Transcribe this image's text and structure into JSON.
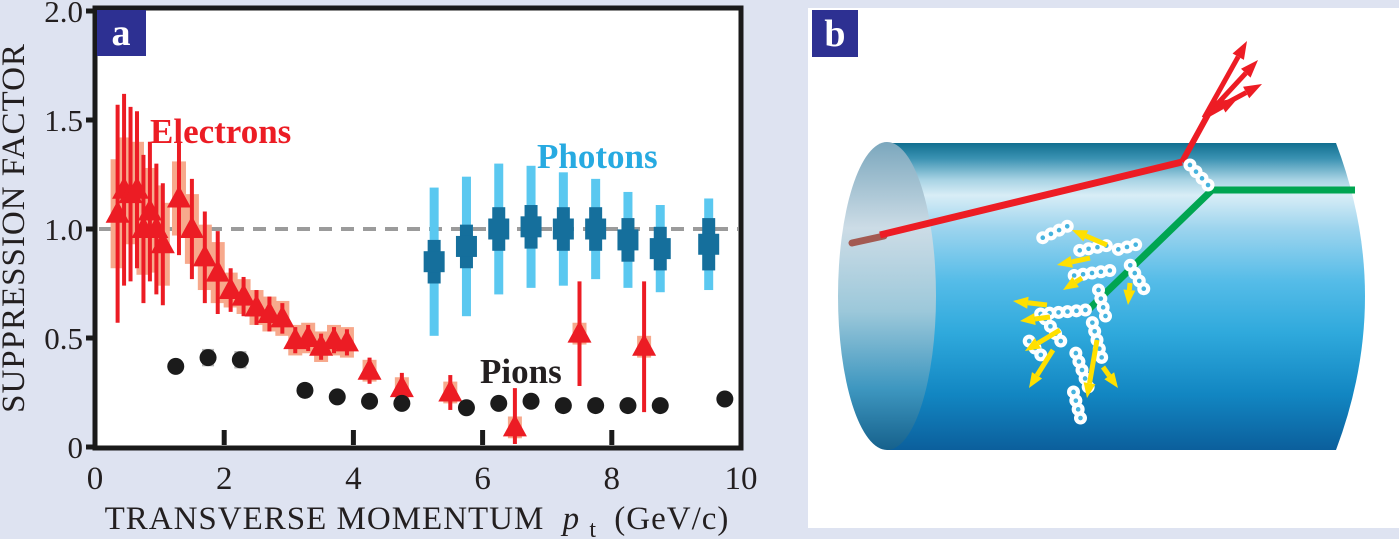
{
  "figure": {
    "background_color": "#dee3f1",
    "badge_color": "#2d3092",
    "panel_a_label": "a",
    "panel_b_label": "b"
  },
  "chart_data": {
    "type": "scatter",
    "title": "",
    "ylabel": "SUPPRESSION FACTOR",
    "xlabel_main": "TRANSVERSE MOMENTUM",
    "xlabel_symbol": "p",
    "xlabel_sub": "t",
    "xlabel_unit": "(GeV/c)",
    "xlim": [
      0,
      10
    ],
    "ylim": [
      0,
      2
    ],
    "xticks": [
      0,
      2,
      4,
      6,
      8,
      10
    ],
    "xtick_labels": [
      "0",
      "2",
      "4",
      "6",
      "8",
      "10"
    ],
    "yticks": [
      0,
      0.5,
      1.0,
      1.5,
      2.0
    ],
    "ytick_labels": [
      "0",
      "0.5",
      "1.0",
      "1.5",
      "2.0"
    ],
    "grid": false,
    "frame_color": "#1a1a1a",
    "reference_line": 1.0,
    "reference_line_color": "#9b9b9b",
    "legend_position": "annotations-inside-plot",
    "series": [
      {
        "name": "Electrons",
        "marker": "triangle",
        "color": "#ec1c24",
        "band_color": "#f7a98c",
        "point_format": [
          "pt_GeVc",
          "suppression_factor",
          "stat_err",
          "sys_err"
        ],
        "points": [
          [
            0.35,
            1.07,
            0.5,
            0.25
          ],
          [
            0.45,
            1.18,
            0.44,
            0.24
          ],
          [
            0.55,
            1.16,
            0.4,
            0.23
          ],
          [
            0.65,
            1.18,
            0.36,
            0.22
          ],
          [
            0.75,
            1.0,
            0.34,
            0.21
          ],
          [
            0.85,
            1.08,
            0.32,
            0.2
          ],
          [
            0.95,
            1.0,
            0.3,
            0.2
          ],
          [
            1.05,
            0.93,
            0.28,
            0.19
          ],
          [
            1.3,
            1.14,
            0.26,
            0.17
          ],
          [
            1.5,
            1.0,
            0.23,
            0.16
          ],
          [
            1.7,
            0.87,
            0.21,
            0.15
          ],
          [
            1.9,
            0.8,
            0.19,
            0.14
          ],
          [
            2.1,
            0.72,
            0.1,
            0.08
          ],
          [
            2.3,
            0.69,
            0.09,
            0.08
          ],
          [
            2.5,
            0.64,
            0.08,
            0.08
          ],
          [
            2.7,
            0.61,
            0.08,
            0.08
          ],
          [
            2.9,
            0.59,
            0.07,
            0.08
          ],
          [
            3.1,
            0.49,
            0.06,
            0.07
          ],
          [
            3.3,
            0.5,
            0.06,
            0.07
          ],
          [
            3.5,
            0.46,
            0.06,
            0.07
          ],
          [
            3.7,
            0.49,
            0.06,
            0.07
          ],
          [
            3.9,
            0.48,
            0.06,
            0.07
          ],
          [
            4.25,
            0.35,
            0.06,
            0.05
          ],
          [
            4.75,
            0.27,
            0.07,
            0.05
          ],
          [
            5.5,
            0.25,
            0.08,
            0.05
          ],
          [
            6.5,
            0.09,
            0.18,
            0.05
          ],
          [
            7.5,
            0.52,
            0.24,
            0.05
          ],
          [
            8.5,
            0.46,
            0.3,
            0.05
          ]
        ]
      },
      {
        "name": "Photons",
        "marker": "square",
        "color": "#156f9c",
        "err_color": "#5ac8f0",
        "point_format": [
          "pt_GeVc",
          "suppression_factor",
          "stat_err",
          "sys_err"
        ],
        "points": [
          [
            5.25,
            0.85,
            0.34,
            0.1
          ],
          [
            5.75,
            0.92,
            0.32,
            0.1
          ],
          [
            6.25,
            1.0,
            0.3,
            0.1
          ],
          [
            6.75,
            1.01,
            0.28,
            0.1
          ],
          [
            7.25,
            1.0,
            0.26,
            0.1
          ],
          [
            7.75,
            1.0,
            0.23,
            0.1
          ],
          [
            8.25,
            0.95,
            0.22,
            0.1
          ],
          [
            8.75,
            0.91,
            0.2,
            0.1
          ],
          [
            9.5,
            0.93,
            0.21,
            0.12
          ]
        ]
      },
      {
        "name": "Pions",
        "marker": "circle",
        "color": "#1b1b1b",
        "band_color": "#b3b3b3",
        "point_format": [
          "pt_GeVc",
          "suppression_factor",
          "sys_err"
        ],
        "points": [
          [
            1.25,
            0.37,
            0
          ],
          [
            1.75,
            0.41,
            0.04
          ],
          [
            2.25,
            0.4,
            0.04
          ],
          [
            3.25,
            0.26,
            0
          ],
          [
            3.75,
            0.23,
            0
          ],
          [
            4.25,
            0.21,
            0
          ],
          [
            4.75,
            0.2,
            0
          ],
          [
            5.75,
            0.18,
            0
          ],
          [
            6.25,
            0.2,
            0
          ],
          [
            6.75,
            0.21,
            0
          ],
          [
            7.25,
            0.19,
            0
          ],
          [
            7.75,
            0.19,
            0
          ],
          [
            8.25,
            0.19,
            0
          ],
          [
            8.75,
            0.19,
            0
          ],
          [
            9.75,
            0.22,
            0
          ]
        ]
      }
    ],
    "labels": [
      {
        "text": "Electrons",
        "color": "#ec1c24"
      },
      {
        "text": "Photons",
        "color": "#27aae1"
      },
      {
        "text": "Pions",
        "color": "#231f20"
      }
    ]
  },
  "panel_b": {
    "label": "b",
    "colors": {
      "track_red": "#ed1c24",
      "track_stub": "#a35a52",
      "recoil_green": "#00a551",
      "gluon_coil": "#ffffff",
      "coil_hole": "#45b3de",
      "radiated_yellow": "#ffe000",
      "cylinder_main": "#2fa9dc"
    }
  }
}
